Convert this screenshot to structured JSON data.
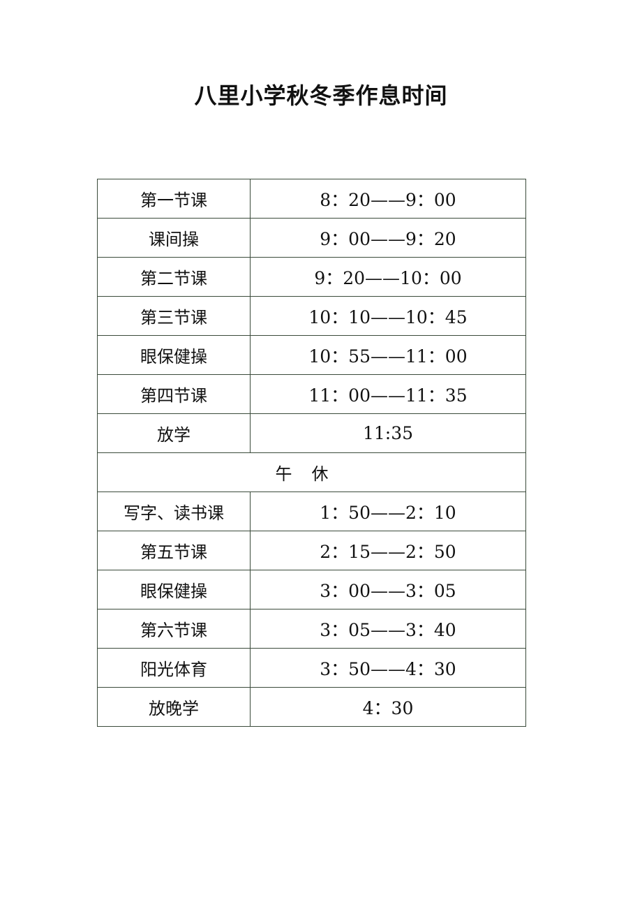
{
  "title": "八里小学秋冬季作息时间",
  "schedule": [
    {
      "label": "第一节课",
      "time": "8：20——9：00"
    },
    {
      "label": "课间操",
      "time": "9：00——9：20"
    },
    {
      "label": "第二节课",
      "time": "9：20——10：00"
    },
    {
      "label": "第三节课",
      "time": "10：10——10：45"
    },
    {
      "label": "眼保健操",
      "time": "10：55——11：00"
    },
    {
      "label": "第四节课",
      "time": "11：00——11：35"
    },
    {
      "label": "放学",
      "time": "11:35"
    },
    {
      "label": "写字、读书课",
      "time": "1：50——2：10"
    },
    {
      "label": "第五节课",
      "time": "2：15——2：50"
    },
    {
      "label": "眼保健操",
      "time": "3：00——3：05"
    },
    {
      "label": "第六节课",
      "time": "3：05——3：40"
    },
    {
      "label": "阳光体育",
      "time": "3：50——4：30"
    },
    {
      "label": "放晚学",
      "time": "4：30"
    }
  ],
  "break_row": "午休"
}
